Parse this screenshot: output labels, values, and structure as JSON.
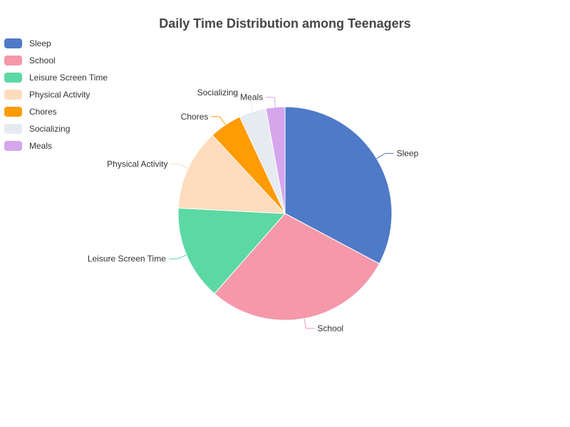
{
  "chart_data": {
    "type": "pie",
    "title": "Daily Time Distribution among Teenagers",
    "legend_position": "top-left",
    "categories": [
      "Sleep",
      "School",
      "Leisure Screen Time",
      "Physical Activity",
      "Chores",
      "Socializing",
      "Meals"
    ],
    "values": [
      8,
      7,
      3.5,
      3,
      1.2,
      1,
      0.7
    ],
    "colors": [
      "#4e7ac7",
      "#f598aa",
      "#5cd8a4",
      "#ffdcbe",
      "#ff9b05",
      "#e6eaf1",
      "#d5a6ec"
    ]
  }
}
